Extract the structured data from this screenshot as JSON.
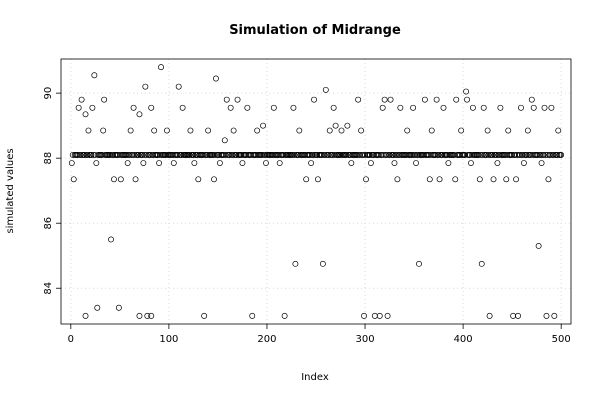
{
  "chart_data": {
    "type": "scatter",
    "title": "Simulation of Midrange",
    "xlabel": "Index",
    "ylabel": "simulated values",
    "xlim": [
      -10,
      510
    ],
    "ylim": [
      82.9,
      91.05
    ],
    "xticks": [
      0,
      100,
      200,
      300,
      400,
      500
    ],
    "yticks": [
      84,
      86,
      88,
      90
    ],
    "grid": true,
    "marker": "open-circle",
    "n_points": 500,
    "baseline_value": 88.1,
    "baseline_index_pattern": "every index not listed in points",
    "points": [
      {
        "x": 3,
        "y": 87.35
      },
      {
        "x": 8,
        "y": 89.55
      },
      {
        "x": 11,
        "y": 89.8
      },
      {
        "x": 15,
        "y": 83.15
      },
      {
        "x": 15,
        "y": 89.35
      },
      {
        "x": 22,
        "y": 89.55
      },
      {
        "x": 24,
        "y": 90.55
      },
      {
        "x": 27,
        "y": 83.4
      },
      {
        "x": 34,
        "y": 89.8
      },
      {
        "x": 41,
        "y": 85.5
      },
      {
        "x": 44,
        "y": 87.35
      },
      {
        "x": 49,
        "y": 83.4
      },
      {
        "x": 51,
        "y": 87.35
      },
      {
        "x": 64,
        "y": 89.55
      },
      {
        "x": 66,
        "y": 87.35
      },
      {
        "x": 70,
        "y": 83.15
      },
      {
        "x": 70,
        "y": 89.35
      },
      {
        "x": 76,
        "y": 90.2
      },
      {
        "x": 78,
        "y": 83.15
      },
      {
        "x": 82,
        "y": 83.15
      },
      {
        "x": 82,
        "y": 89.55
      },
      {
        "x": 92,
        "y": 90.8
      },
      {
        "x": 110,
        "y": 90.2
      },
      {
        "x": 114,
        "y": 89.55
      },
      {
        "x": 130,
        "y": 87.35
      },
      {
        "x": 136,
        "y": 83.15
      },
      {
        "x": 146,
        "y": 87.35
      },
      {
        "x": 148,
        "y": 90.45
      },
      {
        "x": 157,
        "y": 88.55
      },
      {
        "x": 159,
        "y": 89.8
      },
      {
        "x": 163,
        "y": 89.55
      },
      {
        "x": 170,
        "y": 89.8
      },
      {
        "x": 180,
        "y": 89.55
      },
      {
        "x": 185,
        "y": 83.15
      },
      {
        "x": 196,
        "y": 89.0
      },
      {
        "x": 207,
        "y": 89.55
      },
      {
        "x": 218,
        "y": 83.15
      },
      {
        "x": 227,
        "y": 89.55
      },
      {
        "x": 229,
        "y": 84.75
      },
      {
        "x": 240,
        "y": 87.35
      },
      {
        "x": 248,
        "y": 89.8
      },
      {
        "x": 252,
        "y": 87.35
      },
      {
        "x": 257,
        "y": 84.75
      },
      {
        "x": 260,
        "y": 90.1
      },
      {
        "x": 268,
        "y": 89.55
      },
      {
        "x": 270,
        "y": 89.0
      },
      {
        "x": 282,
        "y": 89.0
      },
      {
        "x": 293,
        "y": 89.8
      },
      {
        "x": 299,
        "y": 83.15
      },
      {
        "x": 301,
        "y": 87.35
      },
      {
        "x": 310,
        "y": 83.15
      },
      {
        "x": 315,
        "y": 83.15
      },
      {
        "x": 318,
        "y": 89.55
      },
      {
        "x": 320,
        "y": 89.8
      },
      {
        "x": 323,
        "y": 83.15
      },
      {
        "x": 326,
        "y": 89.8
      },
      {
        "x": 333,
        "y": 87.35
      },
      {
        "x": 336,
        "y": 89.55
      },
      {
        "x": 349,
        "y": 89.55
      },
      {
        "x": 355,
        "y": 84.75
      },
      {
        "x": 361,
        "y": 89.8
      },
      {
        "x": 366,
        "y": 87.35
      },
      {
        "x": 373,
        "y": 89.8
      },
      {
        "x": 376,
        "y": 87.35
      },
      {
        "x": 380,
        "y": 89.55
      },
      {
        "x": 392,
        "y": 87.35
      },
      {
        "x": 393,
        "y": 89.8
      },
      {
        "x": 403,
        "y": 90.05
      },
      {
        "x": 404,
        "y": 89.8
      },
      {
        "x": 410,
        "y": 89.55
      },
      {
        "x": 417,
        "y": 87.35
      },
      {
        "x": 419,
        "y": 84.75
      },
      {
        "x": 421,
        "y": 89.55
      },
      {
        "x": 427,
        "y": 83.15
      },
      {
        "x": 431,
        "y": 87.35
      },
      {
        "x": 438,
        "y": 89.55
      },
      {
        "x": 444,
        "y": 87.35
      },
      {
        "x": 451,
        "y": 83.15
      },
      {
        "x": 454,
        "y": 87.35
      },
      {
        "x": 456,
        "y": 83.15
      },
      {
        "x": 459,
        "y": 89.55
      },
      {
        "x": 470,
        "y": 89.8
      },
      {
        "x": 472,
        "y": 89.55
      },
      {
        "x": 477,
        "y": 85.3
      },
      {
        "x": 483,
        "y": 89.55
      },
      {
        "x": 485,
        "y": 83.15
      },
      {
        "x": 487,
        "y": 87.35
      },
      {
        "x": 490,
        "y": 89.55
      },
      {
        "x": 493,
        "y": 83.15
      },
      {
        "x": 497,
        "y": 88.85
      }
    ],
    "mid_points": [
      {
        "x": 1,
        "y": 87.85
      },
      {
        "x": 18,
        "y": 88.85
      },
      {
        "x": 26,
        "y": 87.85
      },
      {
        "x": 33,
        "y": 88.85
      },
      {
        "x": 58,
        "y": 87.85
      },
      {
        "x": 61,
        "y": 88.85
      },
      {
        "x": 74,
        "y": 87.85
      },
      {
        "x": 85,
        "y": 88.85
      },
      {
        "x": 90,
        "y": 87.85
      },
      {
        "x": 98,
        "y": 88.85
      },
      {
        "x": 105,
        "y": 87.85
      },
      {
        "x": 122,
        "y": 88.85
      },
      {
        "x": 126,
        "y": 87.85
      },
      {
        "x": 140,
        "y": 88.85
      },
      {
        "x": 152,
        "y": 87.85
      },
      {
        "x": 166,
        "y": 88.85
      },
      {
        "x": 175,
        "y": 87.85
      },
      {
        "x": 190,
        "y": 88.85
      },
      {
        "x": 199,
        "y": 87.85
      },
      {
        "x": 213,
        "y": 87.85
      },
      {
        "x": 233,
        "y": 88.85
      },
      {
        "x": 245,
        "y": 87.85
      },
      {
        "x": 264,
        "y": 88.85
      },
      {
        "x": 276,
        "y": 88.85
      },
      {
        "x": 286,
        "y": 87.85
      },
      {
        "x": 296,
        "y": 88.85
      },
      {
        "x": 306,
        "y": 87.85
      },
      {
        "x": 330,
        "y": 87.85
      },
      {
        "x": 343,
        "y": 88.85
      },
      {
        "x": 352,
        "y": 87.85
      },
      {
        "x": 368,
        "y": 88.85
      },
      {
        "x": 385,
        "y": 87.85
      },
      {
        "x": 398,
        "y": 88.85
      },
      {
        "x": 408,
        "y": 87.85
      },
      {
        "x": 425,
        "y": 88.85
      },
      {
        "x": 435,
        "y": 87.85
      },
      {
        "x": 446,
        "y": 88.85
      },
      {
        "x": 462,
        "y": 87.85
      },
      {
        "x": 466,
        "y": 88.85
      },
      {
        "x": 480,
        "y": 87.85
      }
    ]
  }
}
